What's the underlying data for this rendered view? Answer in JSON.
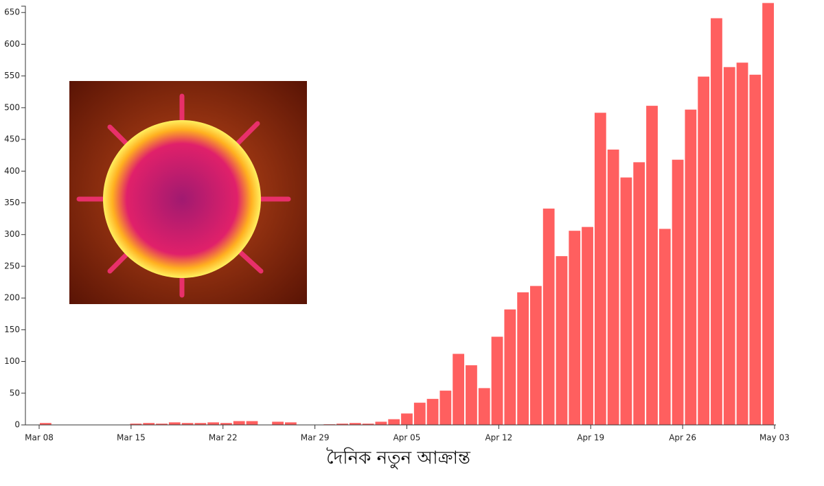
{
  "chart_data": {
    "type": "bar",
    "title": "দৈনিক নতুন আক্রান্ত",
    "categories": [
      "Mar 08",
      null,
      null,
      null,
      null,
      null,
      null,
      "Mar 15",
      null,
      null,
      null,
      null,
      null,
      null,
      "Mar 22",
      null,
      null,
      null,
      null,
      null,
      null,
      "Mar 29",
      null,
      null,
      null,
      null,
      null,
      null,
      "Apr 05",
      null,
      null,
      null,
      null,
      null,
      null,
      "Apr 12",
      null,
      null,
      null,
      null,
      null,
      null,
      "Apr 19",
      null,
      null,
      null,
      null,
      null,
      null,
      "Apr 26",
      null,
      null,
      null,
      null,
      null,
      null,
      "May 03"
    ],
    "values": [
      3,
      0,
      0,
      0,
      0,
      0,
      0,
      2,
      3,
      2,
      4,
      3,
      3,
      4,
      3,
      6,
      6,
      0,
      5,
      4,
      0,
      0,
      1,
      2,
      3,
      2,
      5,
      9,
      18,
      35,
      41,
      54,
      112,
      94,
      58,
      139,
      182,
      209,
      219,
      341,
      266,
      306,
      312,
      492,
      434,
      390,
      414,
      503,
      309,
      418,
      497,
      549,
      641,
      564,
      571,
      552,
      665
    ],
    "color": "#ff5f5f",
    "ylim": [
      0,
      660
    ],
    "yticks": [
      0,
      50,
      100,
      150,
      200,
      250,
      300,
      350,
      400,
      450,
      500,
      550,
      600,
      650
    ]
  }
}
